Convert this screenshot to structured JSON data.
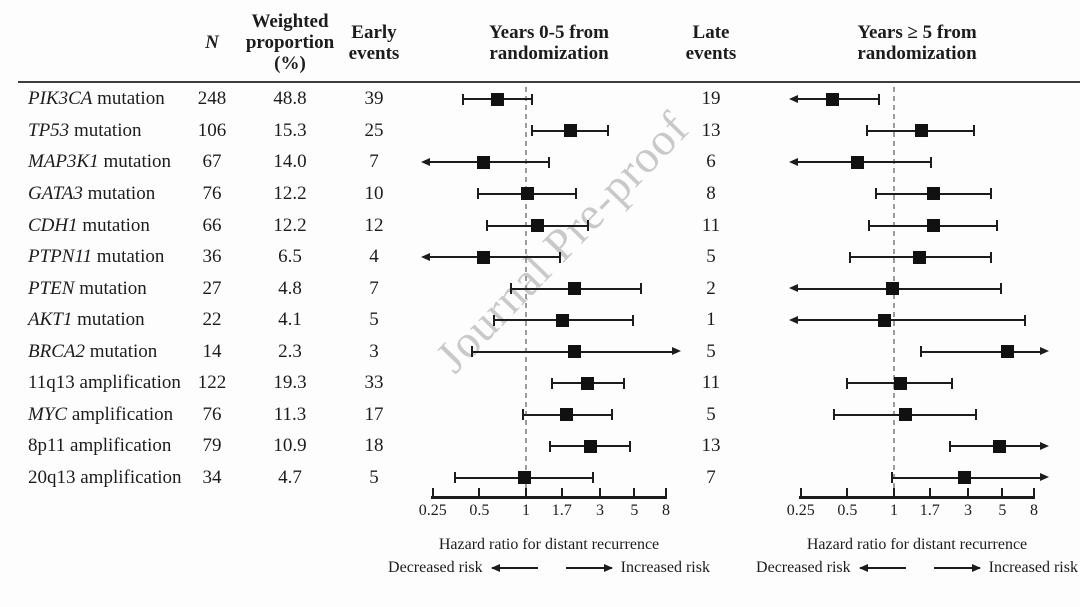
{
  "watermark": "Journal Pre-proof",
  "chart_data": {
    "type": "forest",
    "title": "",
    "xscale": "log",
    "xlim": [
      0.25,
      8
    ],
    "header": {
      "col_n": "N",
      "col_weighted": "Weighted\nproportion\n(%)",
      "col_early": "Early\nevents",
      "col_late": "Late\nevents",
      "title_early": "Years 0-5 from\nrandomization",
      "title_late": "Years ≥ 5 from\nrandomization"
    },
    "axis": {
      "ticks": [
        0.25,
        0.5,
        1,
        1.7,
        3,
        5,
        8
      ],
      "tick_labels": [
        "0.25",
        "0.5",
        "1",
        "1.7",
        "3",
        "5",
        "8"
      ],
      "reference_line": 1,
      "xlabel": "Hazard ratio for distant recurrence",
      "decreased_label": "Decreased risk",
      "increased_label": "Increased risk"
    },
    "rows": [
      {
        "gene": "PIK3CA",
        "italic": true,
        "suffix": "mutation",
        "n": "248",
        "weighted_proportion": "48.8",
        "early_events": "39",
        "late_events": "19",
        "early": {
          "hr": 0.65,
          "lo": 0.39,
          "hi": 1.1,
          "lo_arrow": false,
          "hi_arrow": false
        },
        "late": {
          "hr": 0.4,
          "lo": null,
          "hi": 0.8,
          "lo_arrow": true,
          "hi_arrow": false
        }
      },
      {
        "gene": "TP53",
        "italic": true,
        "suffix": "mutation",
        "n": "106",
        "weighted_proportion": "15.3",
        "early_events": "25",
        "late_events": "13",
        "early": {
          "hr": 1.95,
          "lo": 1.1,
          "hi": 3.4,
          "lo_arrow": false,
          "hi_arrow": false
        },
        "late": {
          "hr": 1.5,
          "lo": 0.67,
          "hi": 3.3,
          "lo_arrow": false,
          "hi_arrow": false
        }
      },
      {
        "gene": "MAP3K1",
        "italic": true,
        "suffix": "mutation",
        "n": "67",
        "weighted_proportion": "14.0",
        "early_events": "7",
        "late_events": "6",
        "early": {
          "hr": 0.53,
          "lo": null,
          "hi": 1.4,
          "lo_arrow": true,
          "hi_arrow": false
        },
        "late": {
          "hr": 0.58,
          "lo": null,
          "hi": 1.72,
          "lo_arrow": true,
          "hi_arrow": false
        }
      },
      {
        "gene": "GATA3",
        "italic": true,
        "suffix": "mutation",
        "n": "76",
        "weighted_proportion": "12.2",
        "early_events": "10",
        "late_events": "8",
        "early": {
          "hr": 1.02,
          "lo": 0.49,
          "hi": 2.1,
          "lo_arrow": false,
          "hi_arrow": false
        },
        "late": {
          "hr": 1.8,
          "lo": 0.77,
          "hi": 4.2,
          "lo_arrow": false,
          "hi_arrow": false
        }
      },
      {
        "gene": "CDH1",
        "italic": true,
        "suffix": "mutation",
        "n": "66",
        "weighted_proportion": "12.2",
        "early_events": "12",
        "late_events": "11",
        "early": {
          "hr": 1.19,
          "lo": 0.56,
          "hi": 2.5,
          "lo_arrow": false,
          "hi_arrow": false
        },
        "late": {
          "hr": 1.8,
          "lo": 0.69,
          "hi": 4.6,
          "lo_arrow": false,
          "hi_arrow": false
        }
      },
      {
        "gene": "PTPN11",
        "italic": true,
        "suffix": "mutation",
        "n": "36",
        "weighted_proportion": "6.5",
        "early_events": "4",
        "late_events": "5",
        "early": {
          "hr": 0.53,
          "lo": null,
          "hi": 1.65,
          "lo_arrow": true,
          "hi_arrow": false
        },
        "late": {
          "hr": 1.45,
          "lo": 0.52,
          "hi": 4.2,
          "lo_arrow": false,
          "hi_arrow": false
        }
      },
      {
        "gene": "PTEN",
        "italic": true,
        "suffix": "mutation",
        "n": "27",
        "weighted_proportion": "4.8",
        "early_events": "7",
        "late_events": "2",
        "early": {
          "hr": 2.05,
          "lo": 0.8,
          "hi": 5.5,
          "lo_arrow": false,
          "hi_arrow": false
        },
        "late": {
          "hr": 0.98,
          "lo": null,
          "hi": 4.9,
          "lo_arrow": true,
          "hi_arrow": false
        }
      },
      {
        "gene": "AKT1",
        "italic": true,
        "suffix": "mutation",
        "n": "22",
        "weighted_proportion": "4.1",
        "early_events": "5",
        "late_events": "1",
        "early": {
          "hr": 1.72,
          "lo": 0.62,
          "hi": 4.9,
          "lo_arrow": false,
          "hi_arrow": false
        },
        "late": {
          "hr": 0.87,
          "lo": null,
          "hi": 7.0,
          "lo_arrow": true,
          "hi_arrow": false
        }
      },
      {
        "gene": "BRCA2",
        "italic": true,
        "suffix": "mutation",
        "n": "14",
        "weighted_proportion": "2.3",
        "early_events": "3",
        "late_events": "5",
        "early": {
          "hr": 2.05,
          "lo": 0.45,
          "hi": null,
          "lo_arrow": false,
          "hi_arrow": true
        },
        "late": {
          "hr": 5.4,
          "lo": 1.5,
          "hi": null,
          "lo_arrow": false,
          "hi_arrow": true
        }
      },
      {
        "gene": "11q13",
        "italic": false,
        "suffix": "amplification",
        "n": "122",
        "weighted_proportion": "19.3",
        "early_events": "33",
        "late_events": "11",
        "early": {
          "hr": 2.5,
          "lo": 1.48,
          "hi": 4.3,
          "lo_arrow": false,
          "hi_arrow": false
        },
        "late": {
          "hr": 1.1,
          "lo": 0.5,
          "hi": 2.35,
          "lo_arrow": false,
          "hi_arrow": false
        }
      },
      {
        "gene": "MYC",
        "italic": true,
        "suffix": "amplification",
        "n": "76",
        "weighted_proportion": "11.3",
        "early_events": "17",
        "late_events": "5",
        "early": {
          "hr": 1.83,
          "lo": 0.96,
          "hi": 3.6,
          "lo_arrow": false,
          "hi_arrow": false
        },
        "late": {
          "hr": 1.18,
          "lo": 0.41,
          "hi": 3.4,
          "lo_arrow": false,
          "hi_arrow": false
        }
      },
      {
        "gene": "8p11",
        "italic": false,
        "suffix": "amplification",
        "n": "79",
        "weighted_proportion": "10.9",
        "early_events": "18",
        "late_events": "13",
        "early": {
          "hr": 2.6,
          "lo": 1.43,
          "hi": 4.7,
          "lo_arrow": false,
          "hi_arrow": false
        },
        "late": {
          "hr": 4.8,
          "lo": 2.3,
          "hi": null,
          "lo_arrow": false,
          "hi_arrow": true
        }
      },
      {
        "gene": "20q13",
        "italic": false,
        "suffix": "amplification",
        "n": "34",
        "weighted_proportion": "4.7",
        "early_events": "5",
        "late_events": "7",
        "early": {
          "hr": 0.98,
          "lo": 0.35,
          "hi": 2.7,
          "lo_arrow": false,
          "hi_arrow": false
        },
        "late": {
          "hr": 2.85,
          "lo": 0.97,
          "hi": null,
          "lo_arrow": false,
          "hi_arrow": true
        }
      }
    ]
  }
}
